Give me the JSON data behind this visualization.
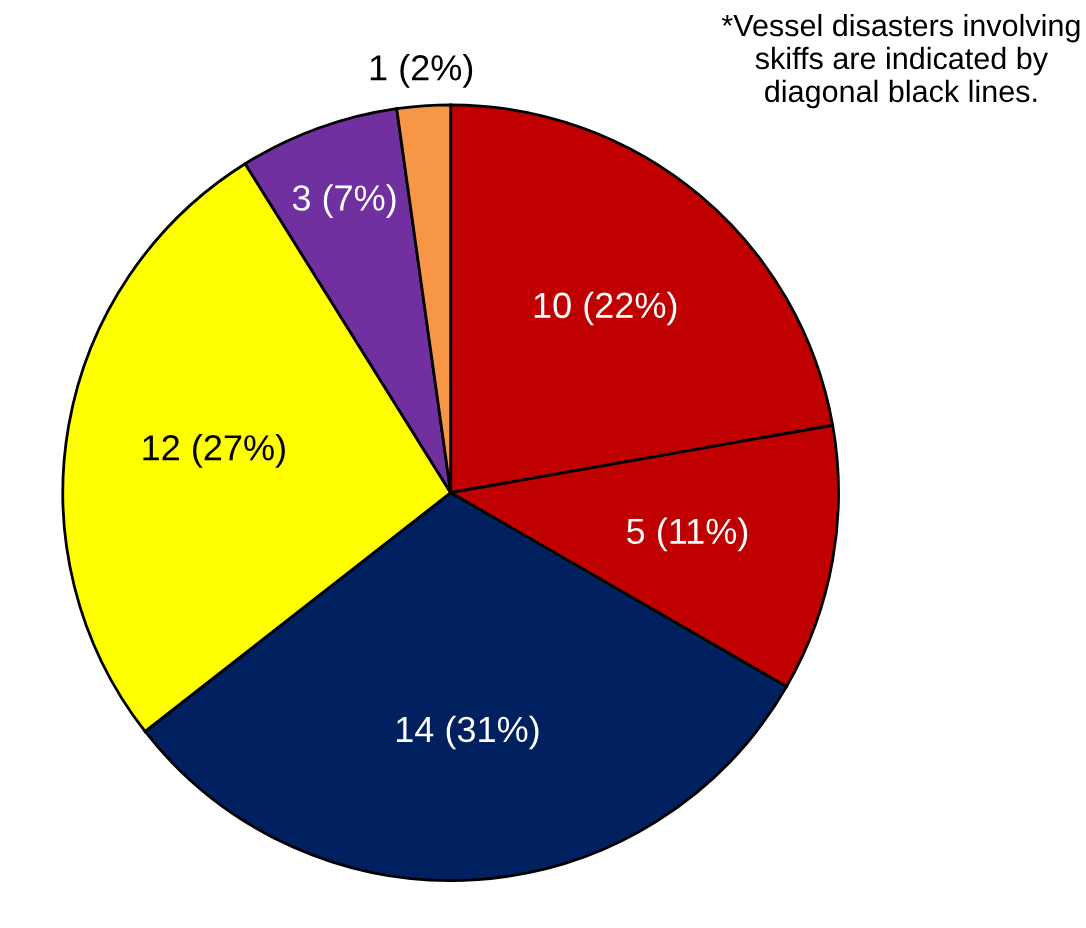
{
  "chart_data": {
    "type": "pie",
    "categories": [
      null,
      null,
      null,
      null,
      null,
      null
    ],
    "values": [
      10,
      5,
      14,
      12,
      3,
      1
    ],
    "value_labels": [
      "10 (22%)",
      "5 (11%)",
      "14 (31%)",
      "12 (27%)",
      "3 (7%)",
      "1 (2%)"
    ],
    "colors": [
      "#c00000",
      "#c00000",
      "#002060",
      "#ffff00",
      "#7030a0",
      "#f79646"
    ],
    "annotations": [
      "*Vessel disasters involving skiffs are indicated by diagonal black lines."
    ],
    "legend": false
  }
}
